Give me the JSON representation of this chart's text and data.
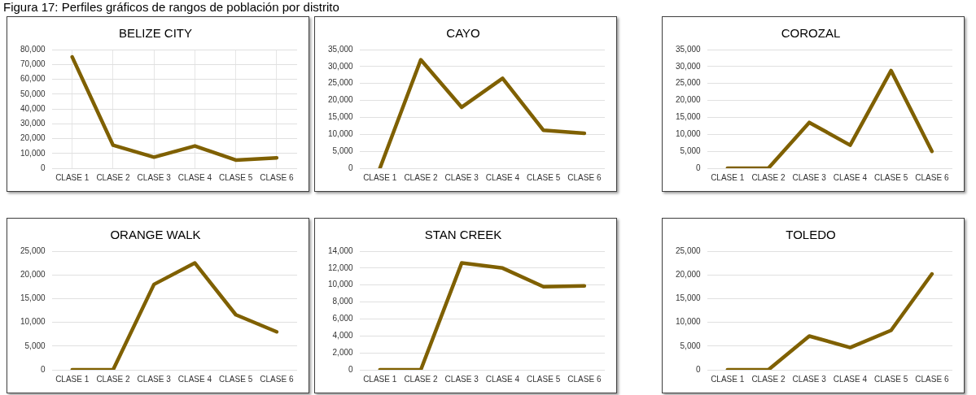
{
  "chart_data": [
    {
      "type": "line",
      "title": "BELIZE CITY",
      "annotations": [
        "Figura 17: Perfiles gráficos de rangos de población por distrito"
      ],
      "categories": [
        "CLASE 1",
        "CLASE 2",
        "CLASE 3",
        "CLASE 4",
        "CLASE 5",
        "CLASE 6"
      ],
      "values": [
        75000,
        15500,
        7500,
        15000,
        5500,
        7000
      ],
      "color": "#7f6000",
      "ylim": [
        0,
        80000
      ],
      "yticks": [
        {
          "value": 0,
          "label": "0"
        },
        {
          "value": 10000,
          "label": "10,000"
        },
        {
          "value": 20000,
          "label": "20,000"
        },
        {
          "value": 30000,
          "label": "30,000"
        },
        {
          "value": 40000,
          "label": "40,000"
        },
        {
          "value": 50000,
          "label": "50,000"
        },
        {
          "value": 60000,
          "label": "60,000"
        },
        {
          "value": 70000,
          "label": "70,000"
        },
        {
          "value": 80000,
          "label": "80,000"
        }
      ],
      "grid": true,
      "legend": false,
      "marker": "none"
    },
    {
      "type": "line",
      "title": "CAYO",
      "categories": [
        "CLASE 1",
        "CLASE 2",
        "CLASE 3",
        "CLASE 4",
        "CLASE 5",
        "CLASE 6"
      ],
      "values": [
        0,
        32000,
        18000,
        26500,
        11200,
        10300
      ],
      "color": "#7f6000",
      "ylim": [
        0,
        35000
      ],
      "yticks": [
        {
          "value": 0,
          "label": "0"
        },
        {
          "value": 5000,
          "label": "5,000"
        },
        {
          "value": 10000,
          "label": "10,000"
        },
        {
          "value": 15000,
          "label": "15,000"
        },
        {
          "value": 20000,
          "label": "20,000"
        },
        {
          "value": 25000,
          "label": "25,000"
        },
        {
          "value": 30000,
          "label": "30,000"
        },
        {
          "value": 35000,
          "label": "35,000"
        }
      ],
      "grid": "y",
      "legend": false,
      "marker": "none"
    },
    {
      "type": "line",
      "title": "COROZAL",
      "categories": [
        "CLASE 1",
        "CLASE 2",
        "CLASE 3",
        "CLASE 4",
        "CLASE 5",
        "CLASE 6"
      ],
      "values": [
        0,
        0,
        13500,
        6800,
        28800,
        5000
      ],
      "color": "#7f6000",
      "ylim": [
        0,
        35000
      ],
      "yticks": [
        {
          "value": 0,
          "label": "0"
        },
        {
          "value": 5000,
          "label": "5,000"
        },
        {
          "value": 10000,
          "label": "10,000"
        },
        {
          "value": 15000,
          "label": "15,000"
        },
        {
          "value": 20000,
          "label": "20,000"
        },
        {
          "value": 25000,
          "label": "25,000"
        },
        {
          "value": 30000,
          "label": "30,000"
        },
        {
          "value": 35000,
          "label": "35,000"
        }
      ],
      "grid": "y",
      "legend": false,
      "marker": "none"
    },
    {
      "type": "line",
      "title": "ORANGE WALK",
      "categories": [
        "CLASE 1",
        "CLASE 2",
        "CLASE 3",
        "CLASE 4",
        "CLASE 5",
        "CLASE 6"
      ],
      "values": [
        0,
        0,
        18000,
        22500,
        11600,
        8000
      ],
      "color": "#7f6000",
      "ylim": [
        0,
        25000
      ],
      "yticks": [
        {
          "value": 0,
          "label": "0"
        },
        {
          "value": 5000,
          "label": "5,000"
        },
        {
          "value": 10000,
          "label": "10,000"
        },
        {
          "value": 15000,
          "label": "15,000"
        },
        {
          "value": 20000,
          "label": "20,000"
        },
        {
          "value": 25000,
          "label": "25,000"
        }
      ],
      "grid": "y",
      "legend": false,
      "marker": "none"
    },
    {
      "type": "line",
      "title": "STAN CREEK",
      "categories": [
        "CLASE 1",
        "CLASE 2",
        "CLASE 3",
        "CLASE 4",
        "CLASE 5",
        "CLASE 6"
      ],
      "values": [
        0,
        0,
        12600,
        12000,
        9800,
        9900
      ],
      "color": "#7f6000",
      "ylim": [
        0,
        14000
      ],
      "yticks": [
        {
          "value": 0,
          "label": "0"
        },
        {
          "value": 2000,
          "label": "2,000"
        },
        {
          "value": 4000,
          "label": "4,000"
        },
        {
          "value": 6000,
          "label": "6,000"
        },
        {
          "value": 8000,
          "label": "8,000"
        },
        {
          "value": 10000,
          "label": "10,000"
        },
        {
          "value": 12000,
          "label": "12,000"
        },
        {
          "value": 14000,
          "label": "14,000"
        }
      ],
      "grid": "y",
      "legend": false,
      "marker": "none"
    },
    {
      "type": "line",
      "title": "TOLEDO",
      "categories": [
        "CLASE 1",
        "CLASE 2",
        "CLASE 3",
        "CLASE 4",
        "CLASE 5",
        "CLASE 6"
      ],
      "values": [
        0,
        0,
        7100,
        4700,
        8300,
        20200
      ],
      "color": "#7f6000",
      "ylim": [
        0,
        25000
      ],
      "yticks": [
        {
          "value": 0,
          "label": "0"
        },
        {
          "value": 5000,
          "label": "5,000"
        },
        {
          "value": 10000,
          "label": "10,000"
        },
        {
          "value": 15000,
          "label": "15,000"
        },
        {
          "value": 20000,
          "label": "20,000"
        },
        {
          "value": 25000,
          "label": "25,000"
        }
      ],
      "grid": "y",
      "legend": false,
      "marker": "none"
    }
  ]
}
